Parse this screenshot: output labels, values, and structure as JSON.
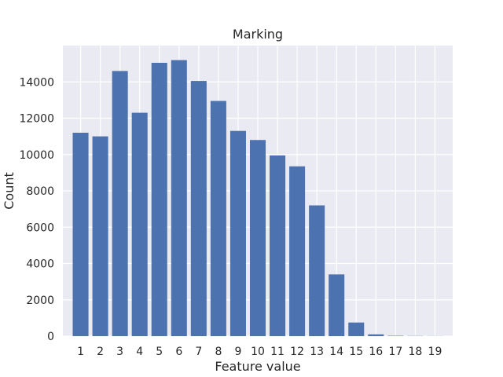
{
  "chart_data": {
    "type": "bar",
    "title": "Marking",
    "xlabel": "Feature value",
    "ylabel": "Count",
    "categories": [
      "1",
      "2",
      "3",
      "4",
      "5",
      "6",
      "7",
      "8",
      "9",
      "10",
      "11",
      "12",
      "13",
      "14",
      "15",
      "16",
      "17",
      "18",
      "19"
    ],
    "values": [
      11200,
      11000,
      14600,
      12300,
      15050,
      15200,
      14050,
      12950,
      11300,
      10800,
      9950,
      9350,
      7200,
      3400,
      750,
      100,
      20,
      10,
      5
    ],
    "ylim": [
      0,
      16000
    ],
    "yticks": [
      0,
      2000,
      4000,
      6000,
      8000,
      10000,
      12000,
      14000
    ],
    "grid": true,
    "bar_color": "#4c72b0",
    "background": "#eaeaf2"
  }
}
